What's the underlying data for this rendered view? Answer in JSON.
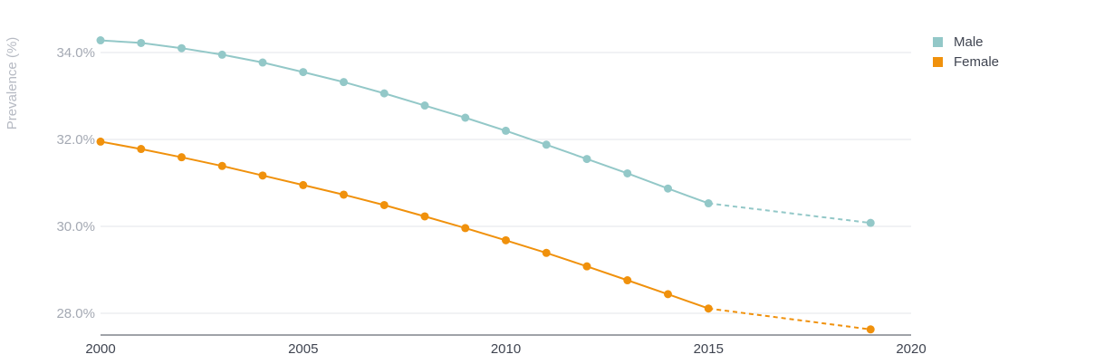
{
  "chart_data": {
    "type": "line",
    "ylabel": "Prevalence (%)",
    "xlabel": "",
    "xlim": [
      2000,
      2020
    ],
    "ylim": [
      27.5,
      34.5
    ],
    "x_ticks": [
      "2000",
      "2005",
      "2010",
      "2015",
      "2020"
    ],
    "y_ticks": [
      "28.0%",
      "30.0%",
      "32.0%",
      "34.0%"
    ],
    "grid": "horizontal",
    "legend_position": "top-right",
    "series": [
      {
        "name": "Male",
        "color": "#93c8c8",
        "points": [
          {
            "x": 2000,
            "y": 34.28
          },
          {
            "x": 2001,
            "y": 34.22
          },
          {
            "x": 2002,
            "y": 34.1
          },
          {
            "x": 2003,
            "y": 33.95
          },
          {
            "x": 2004,
            "y": 33.77
          },
          {
            "x": 2005,
            "y": 33.55
          },
          {
            "x": 2006,
            "y": 33.32
          },
          {
            "x": 2007,
            "y": 33.06
          },
          {
            "x": 2008,
            "y": 32.78
          },
          {
            "x": 2009,
            "y": 32.5
          },
          {
            "x": 2010,
            "y": 32.2
          },
          {
            "x": 2011,
            "y": 31.88
          },
          {
            "x": 2012,
            "y": 31.55
          },
          {
            "x": 2013,
            "y": 31.22
          },
          {
            "x": 2014,
            "y": 30.87
          },
          {
            "x": 2015,
            "y": 30.53
          },
          {
            "x": 2019,
            "y": 30.08
          }
        ],
        "projected_from": 2015
      },
      {
        "name": "Female",
        "color": "#f0910c",
        "points": [
          {
            "x": 2000,
            "y": 31.95
          },
          {
            "x": 2001,
            "y": 31.78
          },
          {
            "x": 2002,
            "y": 31.59
          },
          {
            "x": 2003,
            "y": 31.39
          },
          {
            "x": 2004,
            "y": 31.17
          },
          {
            "x": 2005,
            "y": 30.95
          },
          {
            "x": 2006,
            "y": 30.73
          },
          {
            "x": 2007,
            "y": 30.49
          },
          {
            "x": 2008,
            "y": 30.23
          },
          {
            "x": 2009,
            "y": 29.96
          },
          {
            "x": 2010,
            "y": 29.68
          },
          {
            "x": 2011,
            "y": 29.39
          },
          {
            "x": 2012,
            "y": 29.08
          },
          {
            "x": 2013,
            "y": 28.76
          },
          {
            "x": 2014,
            "y": 28.44
          },
          {
            "x": 2015,
            "y": 28.11
          },
          {
            "x": 2019,
            "y": 27.63
          }
        ],
        "projected_from": 2015
      }
    ]
  }
}
